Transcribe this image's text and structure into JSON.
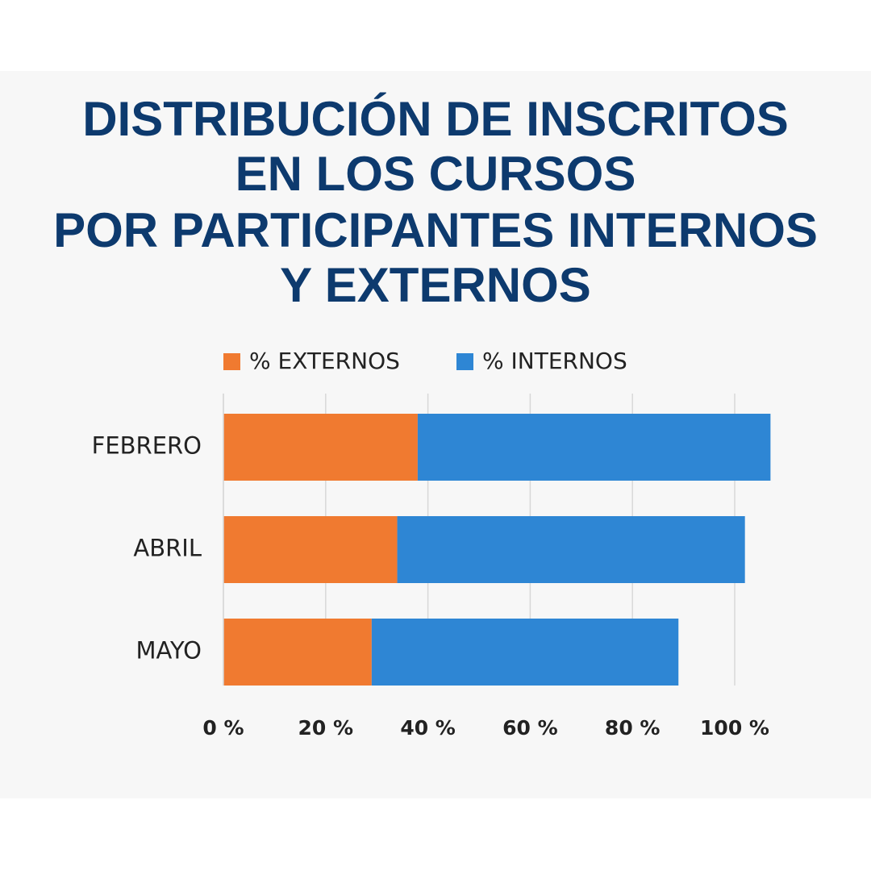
{
  "chart_data": {
    "type": "stacked_bar_horizontal",
    "title": [
      "DISTRIBUCIÓN DE INSCRITOS",
      "EN LOS CURSOS",
      "POR PARTICIPANTES INTERNOS",
      "Y EXTERNOS"
    ],
    "categories": [
      "FEBRERO",
      "ABRIL",
      "MAYO"
    ],
    "series": [
      {
        "name": "% EXTERNOS",
        "color": "#f07a30",
        "values": [
          38,
          34,
          29
        ]
      },
      {
        "name": "% INTERNOS",
        "color": "#2e86d4",
        "values": [
          69,
          68,
          60
        ]
      }
    ],
    "xlim": [
      0,
      108
    ],
    "xticks": [
      {
        "value": 0,
        "label": "0 %"
      },
      {
        "value": 20,
        "label": "20 %"
      },
      {
        "value": 40,
        "label": "40 %"
      },
      {
        "value": 60,
        "label": "60 %"
      },
      {
        "value": 80,
        "label": "80 %"
      },
      {
        "value": 100,
        "label": "100 %"
      }
    ],
    "grid": true,
    "legend": "top"
  }
}
